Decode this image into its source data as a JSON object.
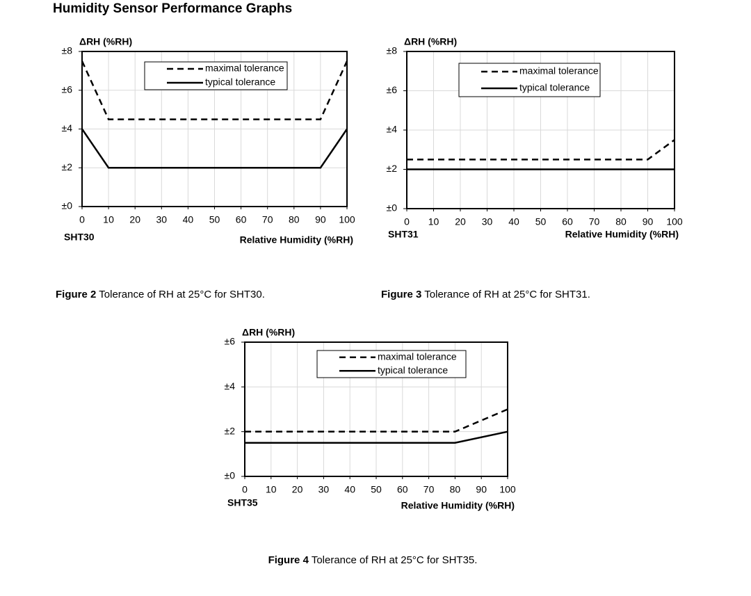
{
  "title": "Humidity Sensor Performance Graphs",
  "chart_data": [
    {
      "type": "line",
      "sensor": "SHT30",
      "y_label": "ΔRH (%RH)",
      "x_label": "Relative Humidity (%RH)",
      "caption": {
        "label": "Figure 2",
        "text": "Tolerance of RH at 25°C for SHT30."
      },
      "xlim": [
        0,
        100
      ],
      "xticks": [
        0,
        10,
        20,
        30,
        40,
        50,
        60,
        70,
        80,
        90,
        100
      ],
      "ylim": [
        0,
        8
      ],
      "yticks": [
        {
          "value": 0,
          "label": "±0"
        },
        {
          "value": 2,
          "label": "±2"
        },
        {
          "value": 4,
          "label": "±4"
        },
        {
          "value": 6,
          "label": "±6"
        },
        {
          "value": 8,
          "label": "±8"
        }
      ],
      "grid": true,
      "series": [
        {
          "name": "maximal tolerance",
          "color": "#000000",
          "dash": "dashed",
          "x": [
            0,
            10,
            90,
            100
          ],
          "values": [
            7.5,
            4.5,
            4.5,
            7.5
          ]
        },
        {
          "name": "typical tolerance",
          "color": "#000000",
          "dash": "solid",
          "x": [
            0,
            10,
            90,
            100
          ],
          "values": [
            4,
            2,
            2,
            4
          ]
        }
      ]
    },
    {
      "type": "line",
      "sensor": "SHT31",
      "y_label": "ΔRH (%RH)",
      "x_label": "Relative Humidity (%RH)",
      "caption": {
        "label": "Figure 3",
        "text": "Tolerance of RH at 25°C for SHT31."
      },
      "xlim": [
        0,
        100
      ],
      "xticks": [
        0,
        10,
        20,
        30,
        40,
        50,
        60,
        70,
        80,
        90,
        100
      ],
      "ylim": [
        0,
        8
      ],
      "yticks": [
        {
          "value": 0,
          "label": "±0"
        },
        {
          "value": 2,
          "label": "±2"
        },
        {
          "value": 4,
          "label": "±4"
        },
        {
          "value": 6,
          "label": "±6"
        },
        {
          "value": 8,
          "label": "±8"
        }
      ],
      "grid": true,
      "series": [
        {
          "name": "maximal tolerance",
          "color": "#000000",
          "dash": "dashed",
          "x": [
            0,
            90,
            100
          ],
          "values": [
            2.5,
            2.5,
            3.5
          ]
        },
        {
          "name": "typical tolerance",
          "color": "#000000",
          "dash": "solid",
          "x": [
            0,
            100
          ],
          "values": [
            2,
            2
          ]
        }
      ]
    },
    {
      "type": "line",
      "sensor": "SHT35",
      "y_label": "ΔRH (%RH)",
      "x_label": "Relative Humidity (%RH)",
      "caption": {
        "label": "Figure 4",
        "text": "Tolerance of RH at 25°C for SHT35."
      },
      "xlim": [
        0,
        100
      ],
      "xticks": [
        0,
        10,
        20,
        30,
        40,
        50,
        60,
        70,
        80,
        90,
        100
      ],
      "ylim": [
        0,
        6
      ],
      "yticks": [
        {
          "value": 0,
          "label": "±0"
        },
        {
          "value": 2,
          "label": "±2"
        },
        {
          "value": 4,
          "label": "±4"
        },
        {
          "value": 6,
          "label": "±6"
        }
      ],
      "grid": true,
      "series": [
        {
          "name": "maximal tolerance",
          "color": "#000000",
          "dash": "dashed",
          "x": [
            0,
            80,
            100
          ],
          "values": [
            2,
            2,
            3
          ]
        },
        {
          "name": "typical tolerance",
          "color": "#000000",
          "dash": "solid",
          "x": [
            0,
            80,
            100
          ],
          "values": [
            1.5,
            1.5,
            2
          ]
        }
      ]
    }
  ]
}
